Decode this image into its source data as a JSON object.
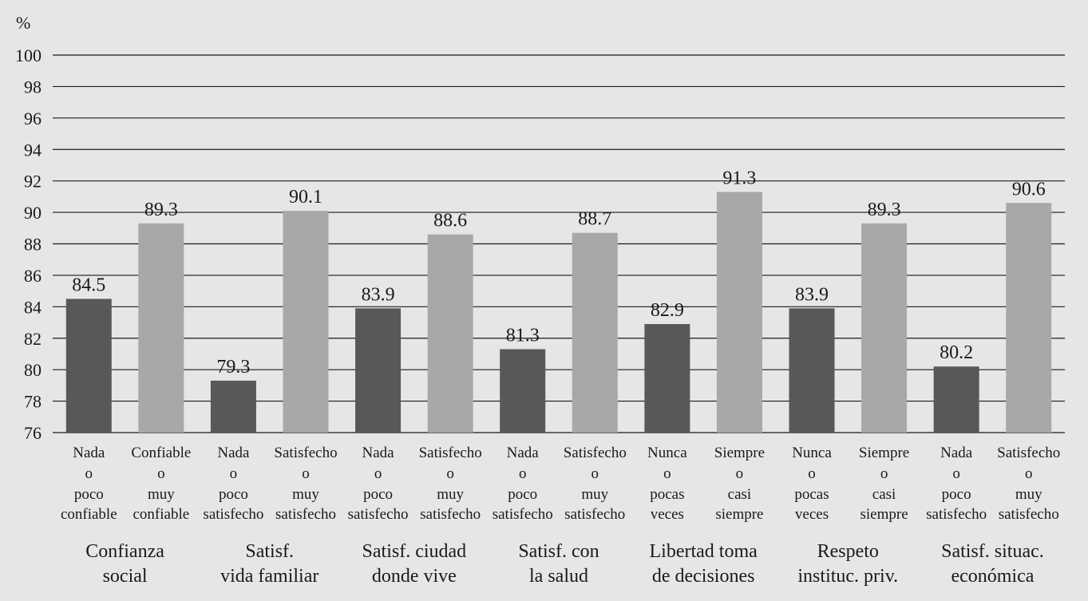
{
  "chart_data": {
    "type": "bar",
    "y_unit_label": "%",
    "ylim": [
      76,
      100
    ],
    "yticks": [
      76,
      78,
      80,
      82,
      84,
      86,
      88,
      90,
      92,
      94,
      96,
      98,
      100
    ],
    "grid": true,
    "colors": {
      "low": "#58585a",
      "high": "#a7a8aa",
      "grid": "#1a1a1a",
      "background": "#e6e6e6"
    },
    "bars": [
      {
        "label_lines": [
          "Nada",
          "o",
          "poco",
          "confiable"
        ],
        "value": 84.5,
        "series": "low"
      },
      {
        "label_lines": [
          "Confiable",
          "o",
          "muy",
          "confiable"
        ],
        "value": 89.3,
        "series": "high"
      },
      {
        "label_lines": [
          "Nada",
          "o",
          "poco",
          "satisfecho"
        ],
        "value": 79.3,
        "series": "low"
      },
      {
        "label_lines": [
          "Satisfecho",
          "o",
          "muy",
          "satisfecho"
        ],
        "value": 90.1,
        "series": "high"
      },
      {
        "label_lines": [
          "Nada",
          "o",
          "poco",
          "satisfecho"
        ],
        "value": 83.9,
        "series": "low"
      },
      {
        "label_lines": [
          "Satisfecho",
          "o",
          "muy",
          "satisfecho"
        ],
        "value": 88.6,
        "series": "high"
      },
      {
        "label_lines": [
          "Nada",
          "o",
          "poco",
          "satisfecho"
        ],
        "value": 81.3,
        "series": "low"
      },
      {
        "label_lines": [
          "Satisfecho",
          "o",
          "muy",
          "satisfecho"
        ],
        "value": 88.7,
        "series": "high"
      },
      {
        "label_lines": [
          "Nunca",
          "o",
          "pocas",
          "veces"
        ],
        "value": 82.9,
        "series": "low"
      },
      {
        "label_lines": [
          "Siempre",
          "o",
          "casi",
          "siempre"
        ],
        "value": 91.3,
        "series": "high"
      },
      {
        "label_lines": [
          "Nunca",
          "o",
          "pocas",
          "veces"
        ],
        "value": 83.9,
        "series": "low"
      },
      {
        "label_lines": [
          "Siempre",
          "o",
          "casi",
          "siempre"
        ],
        "value": 89.3,
        "series": "high"
      },
      {
        "label_lines": [
          "Nada",
          "o",
          "poco",
          "satisfecho"
        ],
        "value": 80.2,
        "series": "low"
      },
      {
        "label_lines": [
          "Satisfecho",
          "o",
          "muy",
          "satisfecho"
        ],
        "value": 90.6,
        "series": "high"
      }
    ],
    "groups": [
      {
        "label_lines": [
          "Confianza",
          "social"
        ]
      },
      {
        "label_lines": [
          "Satisf.",
          "vida familiar"
        ]
      },
      {
        "label_lines": [
          "Satisf. ciudad",
          "donde vive"
        ]
      },
      {
        "label_lines": [
          "Satisf. con",
          "la salud"
        ]
      },
      {
        "label_lines": [
          "Libertad toma",
          "de decisiones"
        ]
      },
      {
        "label_lines": [
          "Respeto",
          "instituc. priv."
        ]
      },
      {
        "label_lines": [
          "Satisf. situac.",
          "económica"
        ]
      }
    ]
  }
}
